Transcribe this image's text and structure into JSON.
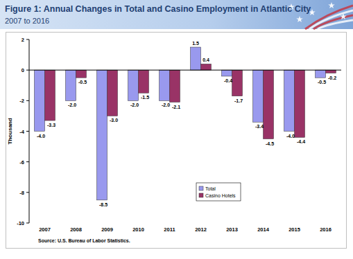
{
  "chart_data": {
    "type": "bar",
    "title": "Figure 1: Annual Changes in Total and Casino Employment in Atlantic City",
    "subtitle": "2007 to 2016",
    "y_label": "Thousand",
    "source": "Source: U.S. Bureau of Labor Statistics.",
    "categories": [
      "2007",
      "2008",
      "2009",
      "2010",
      "2011",
      "2012",
      "2013",
      "2014",
      "2015",
      "2016"
    ],
    "series": [
      {
        "name": "Total",
        "color": "#9999ee",
        "values": [
          -4.0,
          -2.0,
          -8.5,
          -2.0,
          -2.0,
          1.5,
          -0.4,
          -3.4,
          -4.0,
          -0.5
        ],
        "value_labels": [
          "-4.0",
          "-2.0",
          "-8.5",
          "-2.0",
          "-2.0",
          "1.5",
          "-0.4",
          "-3.4",
          "-4.0",
          "-0.5"
        ]
      },
      {
        "name": "Casino Hotels",
        "color": "#993366",
        "values": [
          -3.3,
          -0.5,
          -3.0,
          -1.5,
          -2.1,
          0.4,
          -1.7,
          -4.5,
          -4.4,
          -0.2
        ],
        "value_labels": [
          "-3.3",
          "-0.5",
          "-3.0",
          "-1.5",
          "-2.1",
          "0.4",
          "-1.7",
          "-4.5",
          "-4.4",
          "-0.2"
        ]
      }
    ],
    "ylim": [
      -10,
      2
    ],
    "yticks": [
      -10,
      -8,
      -6,
      -4,
      -2,
      0,
      2
    ],
    "grid": false,
    "legend": "lower right",
    "data_labels": true
  }
}
